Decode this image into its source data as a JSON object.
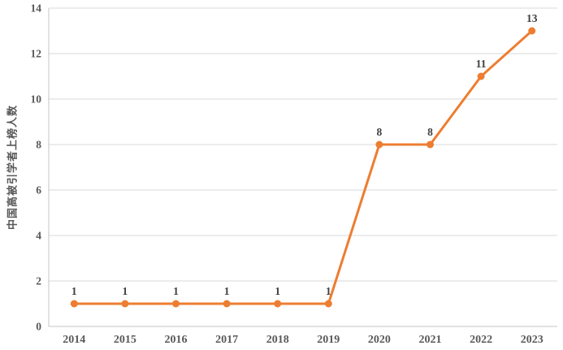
{
  "chart_data": {
    "type": "line",
    "x": [
      "2014",
      "2015",
      "2016",
      "2017",
      "2018",
      "2019",
      "2020",
      "2021",
      "2022",
      "2023"
    ],
    "series": [
      {
        "name": "中国高被引学者上榜人数",
        "values": [
          1,
          1,
          1,
          1,
          1,
          1,
          8,
          8,
          11,
          13
        ]
      }
    ],
    "data_labels": [
      "1",
      "1",
      "1",
      "1",
      "1",
      "1",
      "8",
      "8",
      "11",
      "13"
    ],
    "title": "",
    "xlabel": "",
    "ylabel": "中国高被引学者上榜人数",
    "ylim": [
      0,
      14
    ],
    "yticks": [
      0,
      2,
      4,
      6,
      8,
      10,
      12,
      14
    ],
    "grid": true,
    "legend_position": "none",
    "colors": {
      "line": "#ED7D31",
      "marker": "#ED7D31",
      "gridline": "#D9D9D9",
      "axis_line": "#C6C6C6",
      "tick_label": "#595959",
      "data_label": "#3F3F3F"
    }
  }
}
